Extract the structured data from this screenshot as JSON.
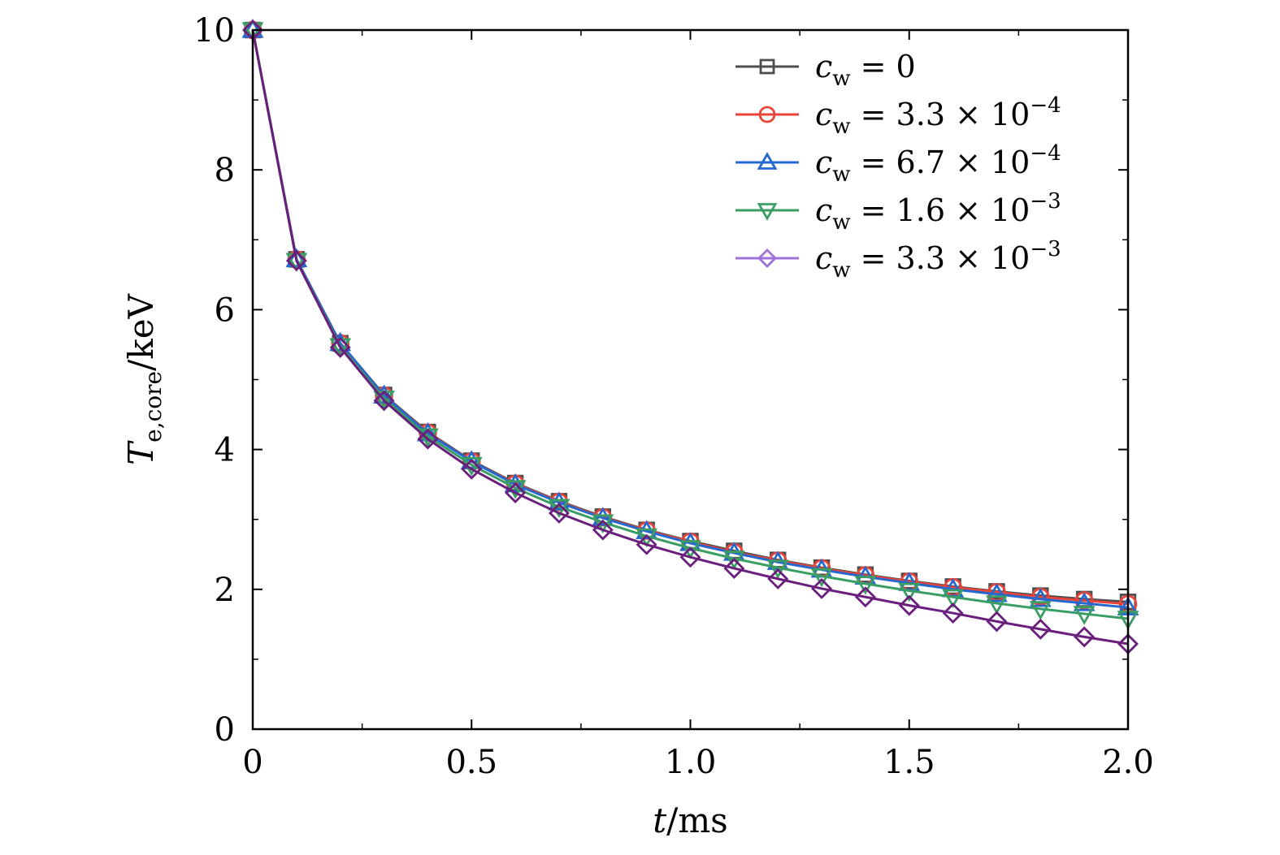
{
  "chart_data": {
    "type": "line",
    "xlabel": {
      "var": "t",
      "unit": "/ms"
    },
    "ylabel": {
      "var": "T",
      "sub": "e,core",
      "unit": "/keV"
    },
    "xlim": [
      0,
      2.0
    ],
    "ylim": [
      0,
      10
    ],
    "xticks": [
      "0",
      "0.5",
      "1.0",
      "1.5",
      "2.0"
    ],
    "xtick_values": [
      0,
      0.5,
      1.0,
      1.5,
      2.0
    ],
    "yticks": [
      "0",
      "2",
      "4",
      "6",
      "8",
      "10"
    ],
    "ytick_values": [
      0,
      2,
      4,
      6,
      8,
      10
    ],
    "grid": false,
    "legend_position": "top-right",
    "x": [
      0,
      0.1,
      0.2,
      0.3,
      0.4,
      0.5,
      0.6,
      0.7,
      0.8,
      0.9,
      1.0,
      1.1,
      1.2,
      1.3,
      1.4,
      1.5,
      1.6,
      1.7,
      1.8,
      1.9,
      2.0
    ],
    "series": [
      {
        "label": {
          "var": "c",
          "sub": "w",
          "value": "= 0",
          "exp": ""
        },
        "color": "#4d4d4d",
        "marker": "square",
        "values": [
          10.0,
          6.72,
          5.52,
          4.78,
          4.25,
          3.84,
          3.52,
          3.26,
          3.04,
          2.85,
          2.69,
          2.55,
          2.42,
          2.31,
          2.21,
          2.12,
          2.04,
          1.97,
          1.91,
          1.86,
          1.82
        ]
      },
      {
        "label": {
          "var": "c",
          "sub": "w",
          "value": "= 3.3 × 10",
          "exp": "−4"
        },
        "color": "#e8443a",
        "marker": "circle",
        "values": [
          10.0,
          6.72,
          5.52,
          4.77,
          4.24,
          3.83,
          3.51,
          3.25,
          3.03,
          2.84,
          2.68,
          2.53,
          2.41,
          2.3,
          2.2,
          2.11,
          2.03,
          1.96,
          1.89,
          1.84,
          1.79
        ]
      },
      {
        "label": {
          "var": "c",
          "sub": "w",
          "value": "= 6.7 × 10",
          "exp": "−4"
        },
        "color": "#2468d0",
        "marker": "triangle-up",
        "values": [
          10.0,
          6.72,
          5.52,
          4.77,
          4.23,
          3.83,
          3.5,
          3.24,
          3.02,
          2.83,
          2.66,
          2.52,
          2.39,
          2.28,
          2.18,
          2.09,
          2.0,
          1.93,
          1.86,
          1.8,
          1.74
        ]
      },
      {
        "label": {
          "var": "c",
          "sub": "w",
          "value": "= 1.6 × 10",
          "exp": "−3"
        },
        "color": "#3a9e64",
        "marker": "triangle-down",
        "values": [
          10.0,
          6.7,
          5.48,
          4.73,
          4.19,
          3.78,
          3.45,
          3.18,
          2.96,
          2.76,
          2.59,
          2.44,
          2.31,
          2.19,
          2.08,
          1.98,
          1.89,
          1.8,
          1.72,
          1.65,
          1.58
        ]
      },
      {
        "label": {
          "var": "c",
          "sub": "w",
          "value": "= 3.3 × 10",
          "exp": "−3"
        },
        "color": "#a070d8",
        "line_color": "#6a1f7c",
        "marker": "diamond",
        "values": [
          10.0,
          6.7,
          5.46,
          4.7,
          4.15,
          3.72,
          3.38,
          3.09,
          2.85,
          2.64,
          2.46,
          2.3,
          2.15,
          2.01,
          1.89,
          1.77,
          1.66,
          1.54,
          1.43,
          1.32,
          1.22
        ]
      }
    ]
  }
}
